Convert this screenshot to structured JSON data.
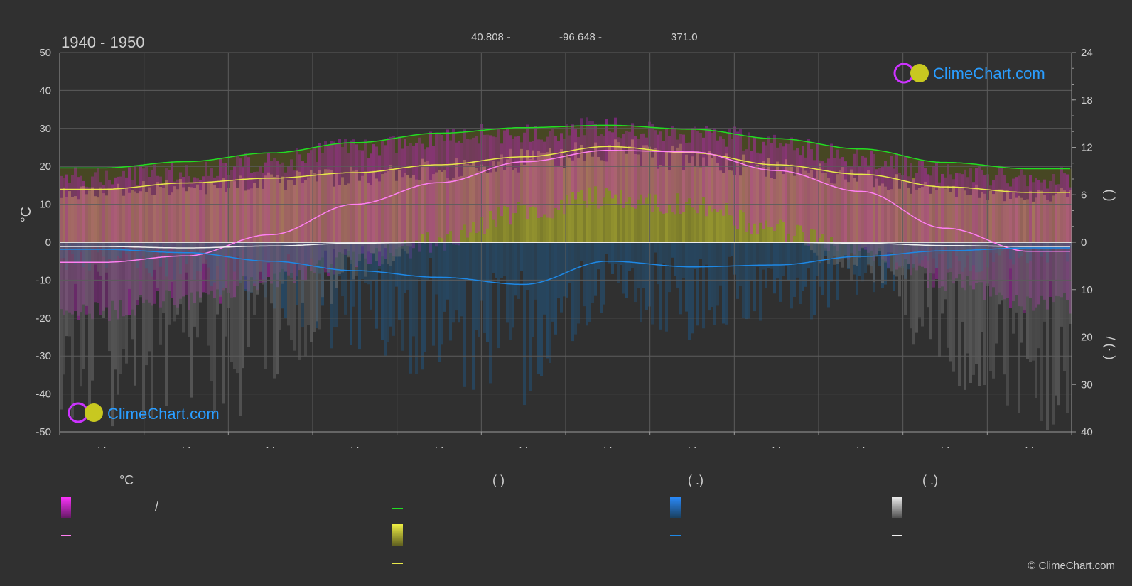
{
  "period": "1940 - 1950",
  "location": {
    "lat": "40.808 -",
    "lon": "-96.648 -",
    "elev": "371.0"
  },
  "watermark": "ClimeChart.com",
  "copyright": "© ClimeChart.com",
  "legend": {
    "col1_head": "°C",
    "col1_item1": "/",
    "col2_head": "(          )",
    "col3_head": "(   .)",
    "col4_head": "(   .)"
  },
  "colors": {
    "background": "#303030",
    "daylight": "#22dd22",
    "sunshine": "#e8e84a",
    "sunshine_band": "#a8a832",
    "temp_band": "#cc22cc",
    "temp_mean": "#ff7ff2",
    "rain": "#1e88e5",
    "rain_band": "#1f5a8a",
    "snow": "#f0f0f0",
    "snow_band": "#6e6e6e"
  },
  "chart_data": {
    "type": "line",
    "title": "1940 - 1950",
    "x_months": [
      1,
      2,
      3,
      4,
      5,
      6,
      7,
      8,
      9,
      10,
      11,
      12
    ],
    "month_tick_labels": [
      ". .",
      ". .",
      ". .",
      ". .",
      ". .",
      ". .",
      ". .",
      ". .",
      ". .",
      ". .",
      ". .",
      ". ."
    ],
    "y_left": {
      "label": "°C",
      "range": [
        -50,
        50
      ],
      "ticks": [
        50,
        40,
        30,
        20,
        10,
        0,
        -10,
        -20,
        -30,
        -40,
        -50
      ]
    },
    "y_right_top": {
      "label": "(   )",
      "range": [
        0,
        24
      ],
      "ticks": [
        24,
        18,
        12,
        6,
        0
      ]
    },
    "y_right_bottom": {
      "label": "/  (·  )",
      "range": [
        0,
        40
      ],
      "ticks": [
        0,
        10,
        20,
        30,
        40
      ]
    },
    "grid": true,
    "series": [
      {
        "key": "daylight",
        "axis": "hours",
        "values": [
          9.4,
          10.2,
          11.3,
          12.6,
          13.8,
          14.5,
          14.8,
          14.3,
          13.1,
          11.8,
          10.1,
          9.3
        ]
      },
      {
        "key": "sunshine",
        "axis": "hours",
        "values": [
          6.7,
          7.5,
          8.1,
          8.8,
          9.8,
          10.8,
          12.1,
          11.3,
          9.8,
          8.6,
          7.0,
          6.3
        ]
      },
      {
        "key": "temp_mean",
        "axis": "celsius",
        "values": [
          -5.3,
          -3.6,
          2.0,
          10.0,
          15.7,
          21.2,
          24.2,
          23.8,
          18.9,
          13.4,
          3.7,
          -2.4
        ]
      },
      {
        "key": "temp_max",
        "axis": "celsius",
        "values": [
          17.5,
          18.7,
          21.0,
          25.0,
          27.5,
          29.0,
          30.5,
          29.0,
          26.0,
          22.0,
          18.5,
          17.0
        ]
      },
      {
        "key": "temp_min",
        "axis": "celsius",
        "values": [
          -18,
          -15,
          -10,
          -5,
          0,
          8,
          12,
          10,
          3,
          -3,
          -10,
          -16
        ]
      },
      {
        "key": "rain",
        "axis": "precip",
        "values": [
          1.5,
          2.2,
          4.0,
          6.0,
          7.4,
          8.9,
          4.0,
          5.2,
          4.8,
          3.0,
          1.8,
          1.2
        ]
      },
      {
        "key": "snow",
        "axis": "precip",
        "values": [
          0.9,
          1.2,
          0.8,
          0.2,
          0.0,
          0.0,
          0.0,
          0.0,
          0.0,
          0.2,
          0.7,
          0.9
        ]
      }
    ]
  }
}
